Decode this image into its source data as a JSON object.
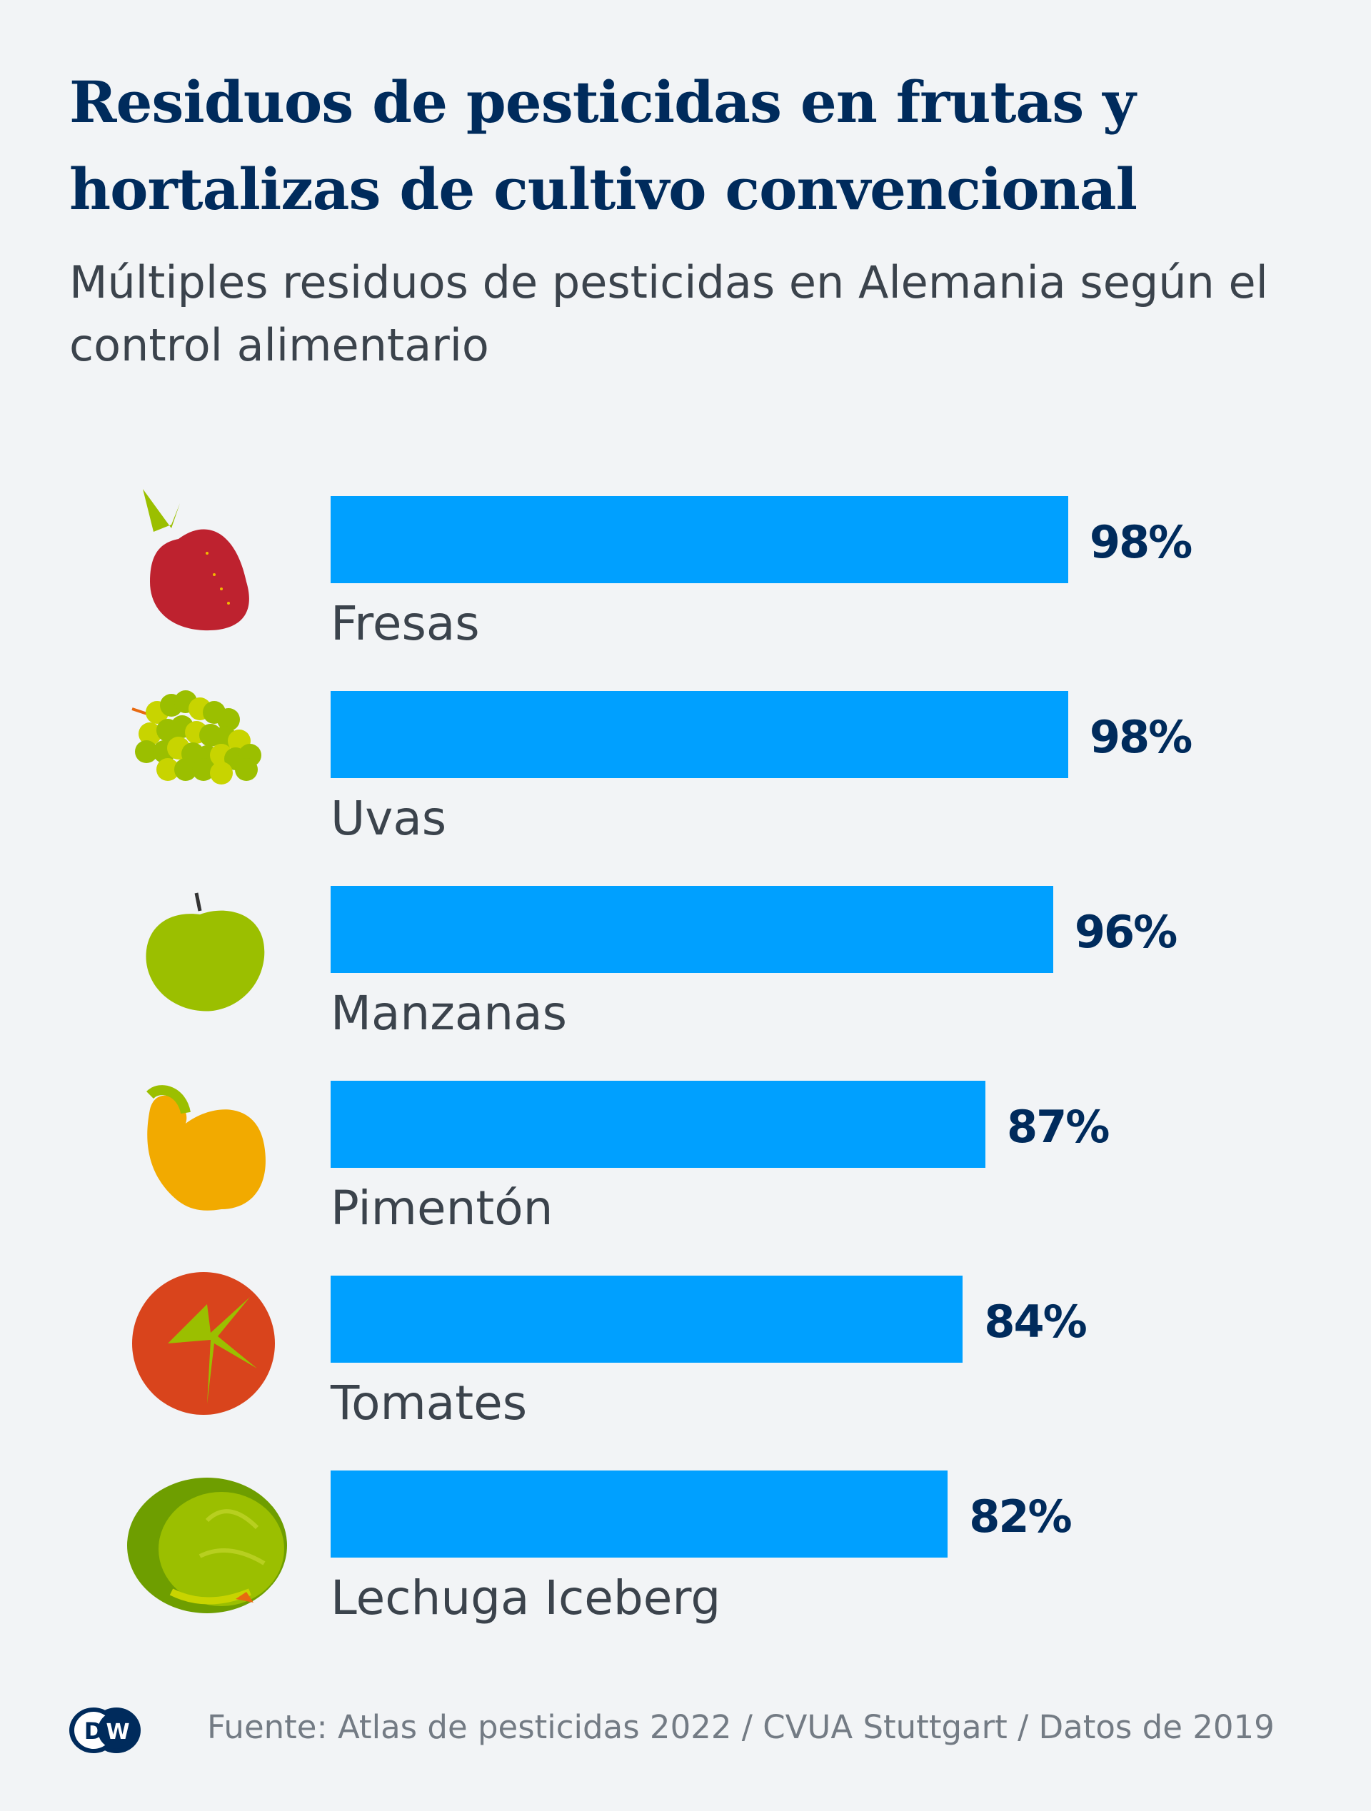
{
  "title": "Residuos de pesticidas en frutas y hortalizas de cultivo convencional",
  "subtitle": "Múltiples residuos de pesticidas en Alemania según el control alimentario",
  "colors": {
    "bar": "#00a0ff",
    "title": "#002b5c",
    "background": "#f2f4f6"
  },
  "chart_data": {
    "type": "bar",
    "orientation": "horizontal",
    "categories": [
      "Fresas",
      "Uvas",
      "Manzanas",
      "Pimentón",
      "Tomates",
      "Lechuga Iceberg"
    ],
    "values": [
      98,
      98,
      96,
      87,
      84,
      82
    ],
    "value_labels": [
      "98%",
      "98%",
      "96%",
      "87%",
      "84%",
      "82%"
    ],
    "icons": [
      "strawberry-icon",
      "grapes-icon",
      "apple-icon",
      "pepper-icon",
      "tomato-icon",
      "lettuce-icon"
    ],
    "xlim": [
      0,
      100
    ],
    "grid": false
  },
  "footer": {
    "source": "Fuente: Atlas de pesticidas 2022 / CVUA Stuttgart / Datos de 2019",
    "logo": "DW"
  }
}
